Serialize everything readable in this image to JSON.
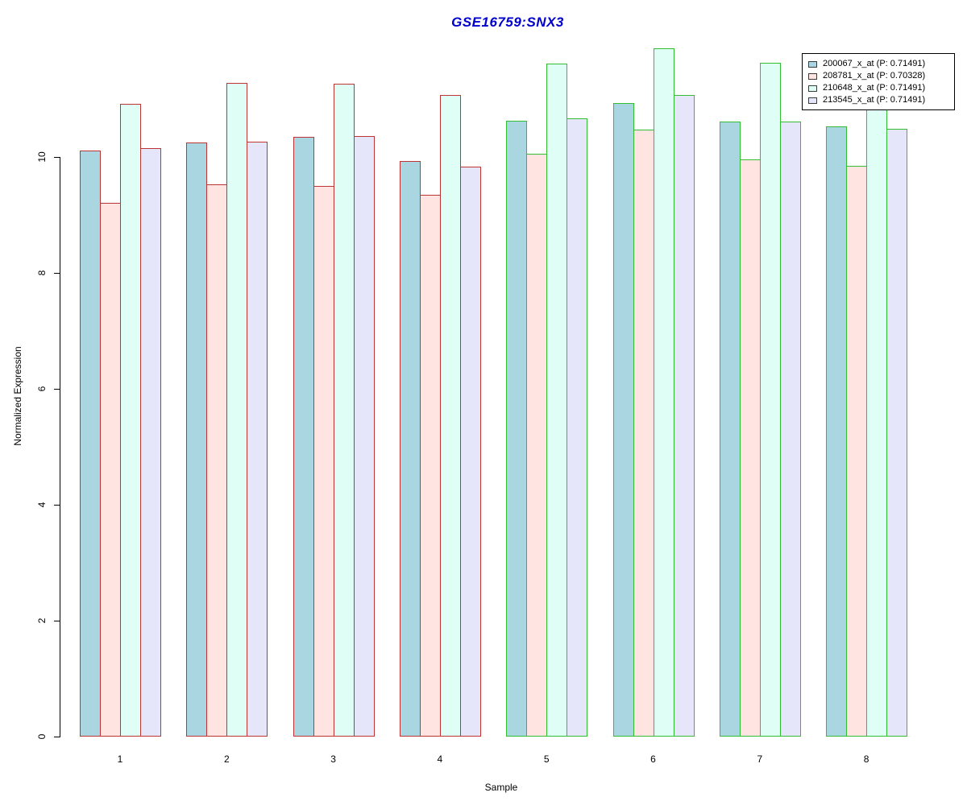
{
  "title": "GSE16759:SNX3",
  "title_color": "#0000cc",
  "chart_data": {
    "type": "bar",
    "title": "GSE16759:SNX3",
    "xlabel": "Sample",
    "ylabel": "Normalized Expression",
    "categories": [
      "1",
      "2",
      "3",
      "4",
      "5",
      "6",
      "7",
      "8"
    ],
    "yticks": [
      "0",
      "2",
      "4",
      "6",
      "8",
      "10"
    ],
    "ytick_values": [
      0,
      2,
      4,
      6,
      8,
      10
    ],
    "ylim": [
      0,
      12
    ],
    "grid": false,
    "legend_position": "top-right",
    "series": [
      {
        "name": "200067_x_at (P: 0.71491)",
        "fill": "#aad6e2",
        "values": [
          10.11,
          10.25,
          10.35,
          9.93,
          10.63,
          10.93,
          10.61,
          10.53
        ]
      },
      {
        "name": "208781_x_at (P: 0.70328)",
        "fill": "#ffe4e1",
        "values": [
          9.21,
          9.53,
          9.5,
          9.35,
          10.06,
          10.47,
          9.96,
          9.85
        ]
      },
      {
        "name": "210648_x_at (P: 0.71491)",
        "fill": "#dffff6",
        "values": [
          10.92,
          11.28,
          11.26,
          11.07,
          11.61,
          11.88,
          11.63,
          11.3
        ]
      },
      {
        "name": "213545_x_at (P: 0.71491)",
        "fill": "#e6e6fa",
        "values": [
          10.15,
          10.26,
          10.36,
          9.83,
          10.67,
          11.07,
          10.61,
          10.49
        ]
      }
    ],
    "group_border_colors": [
      "#bd3434",
      "#bd3434",
      "#bd3434",
      "#bd3434",
      "#33bd33",
      "#33bd33",
      "#33bd33",
      "#33bd33"
    ],
    "note": "Groups 1-4 outlined red, groups 5-8 outlined green; top of group-8 cyan bar hidden behind legend"
  }
}
